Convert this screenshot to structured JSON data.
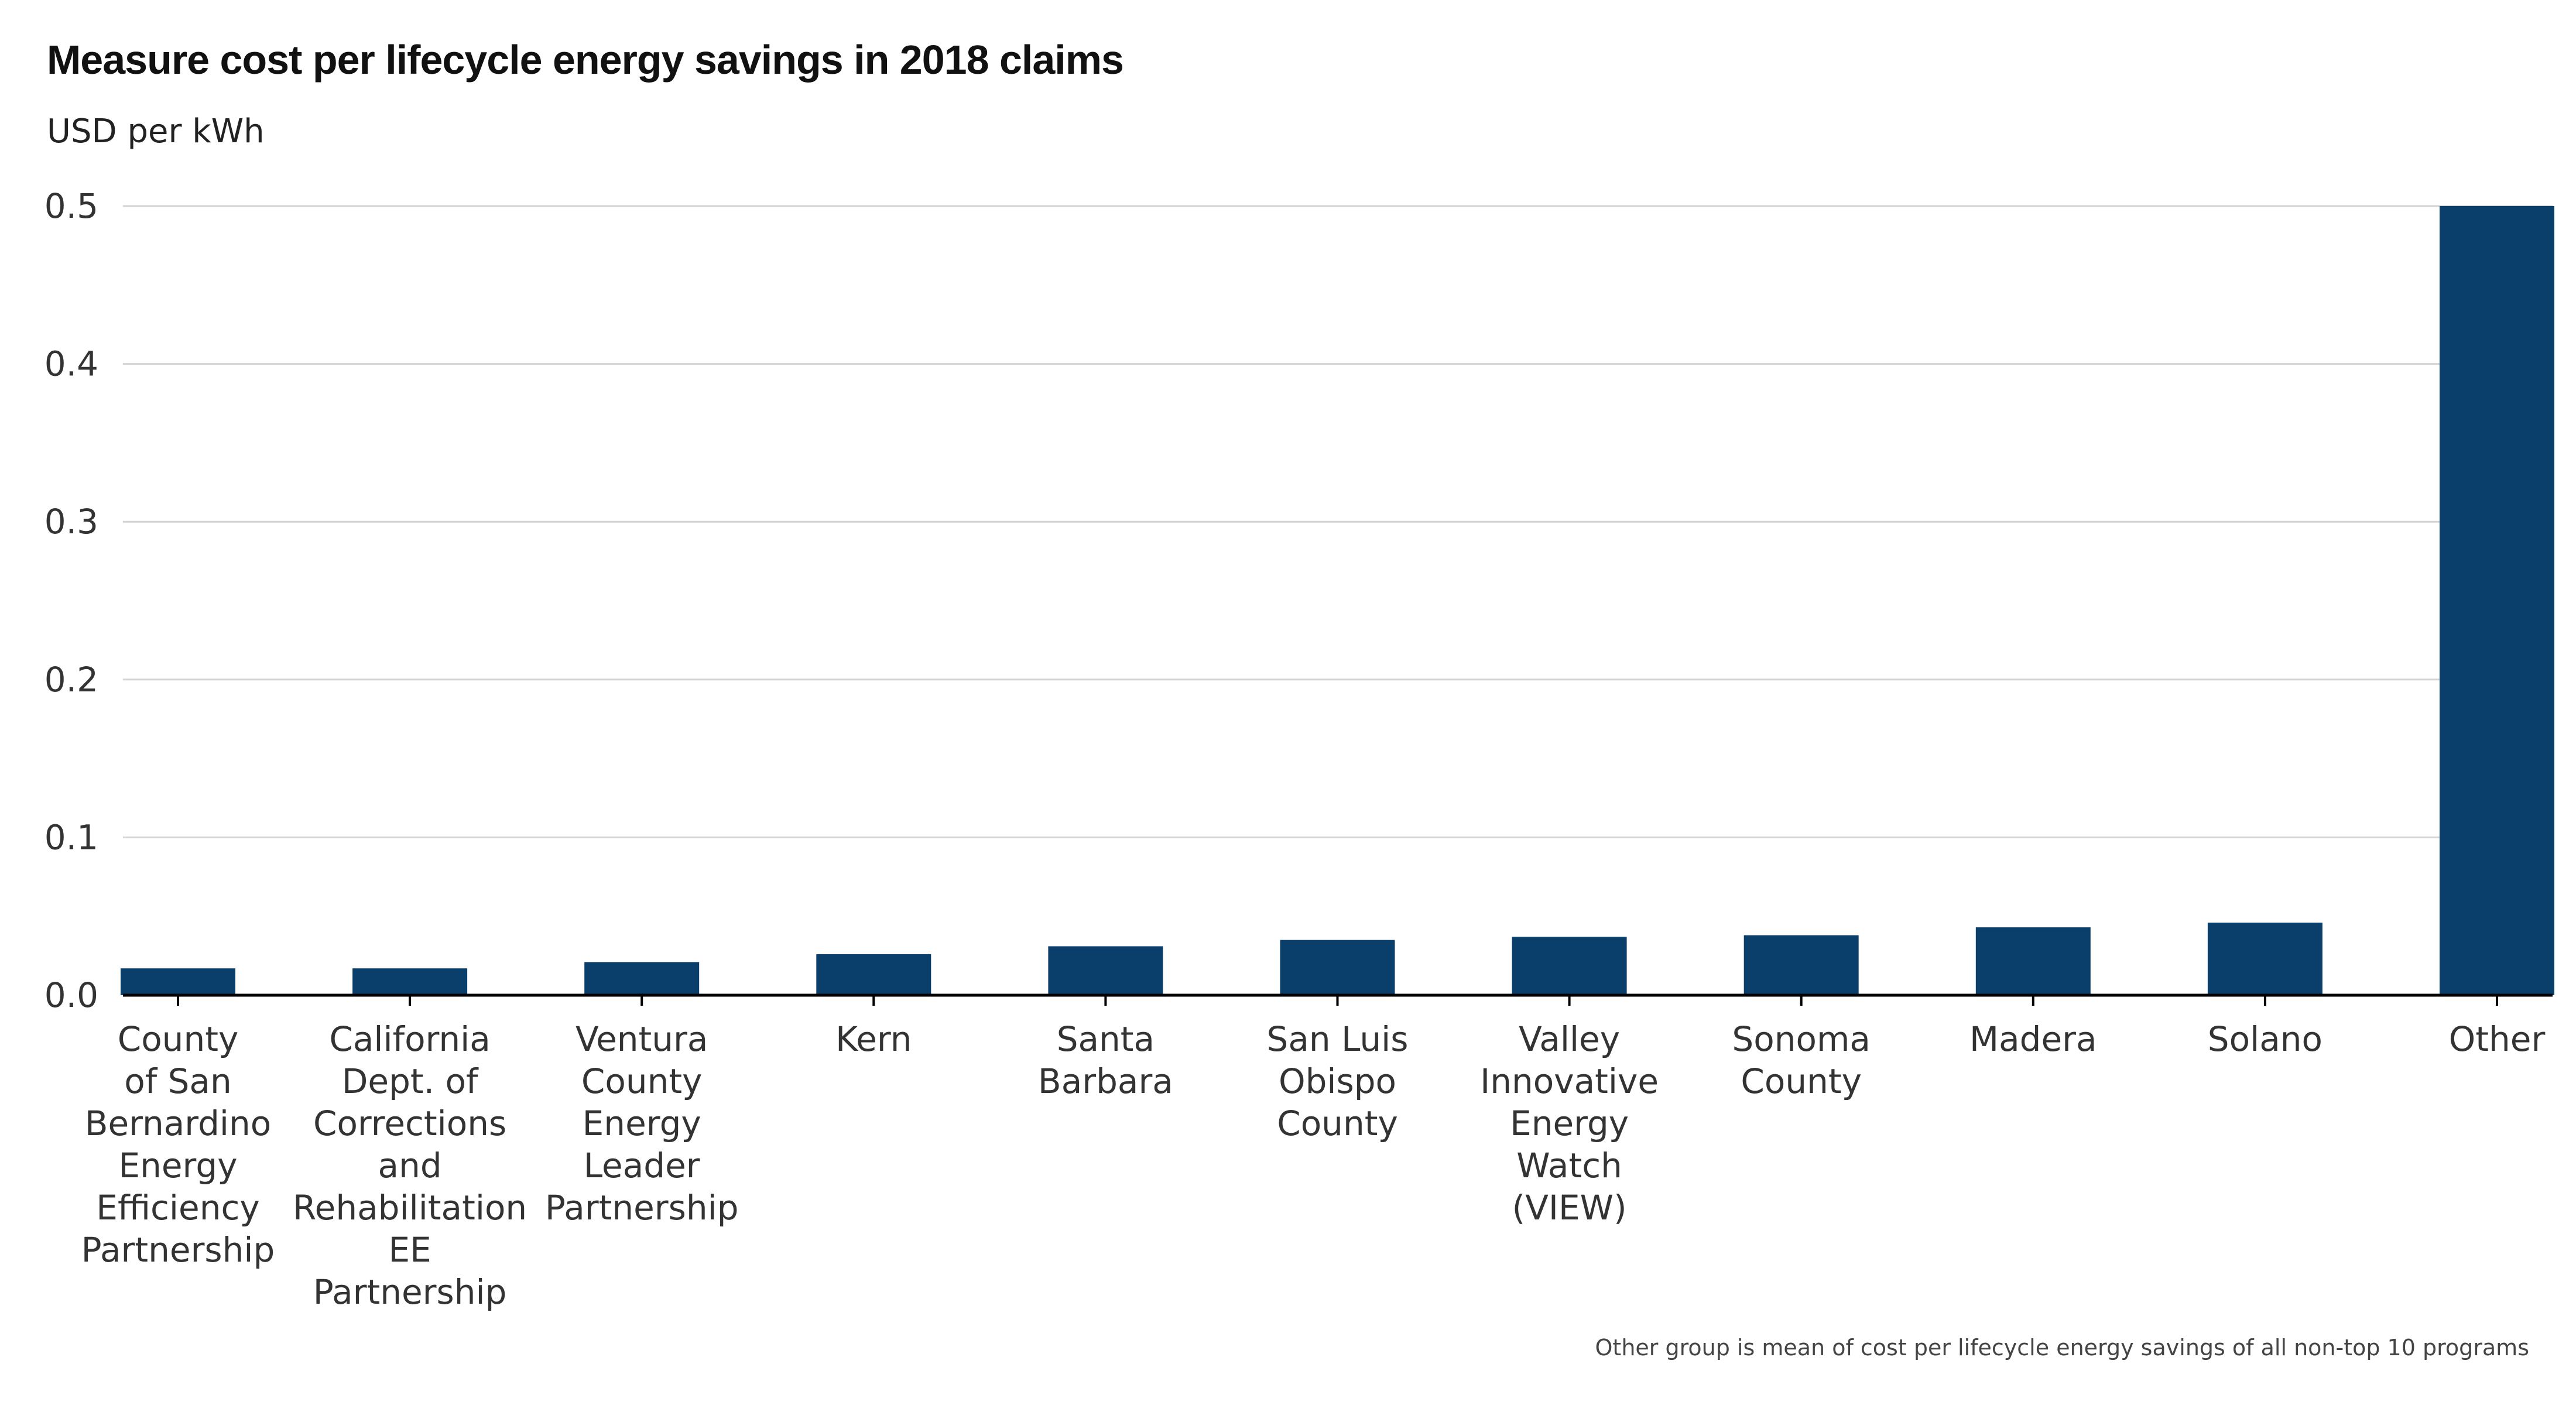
{
  "title": "Measure cost per lifecycle energy savings in 2018 claims",
  "subtitle": "USD per kWh",
  "footnote": "Other group is mean of cost per lifecycle energy savings of all non-top 10 programs",
  "colors": {
    "bar": "#0a3f6b",
    "grid": "#d3d3d3",
    "axis": "#000000"
  },
  "chart_data": {
    "type": "bar",
    "title": "Measure cost per lifecycle energy savings in 2018 claims",
    "ylabel": "USD per kWh",
    "xlabel": "",
    "ylim": [
      0,
      0.5
    ],
    "yticks": [
      "0.0",
      "0.1",
      "0.2",
      "0.3",
      "0.4",
      "0.5"
    ],
    "grid": true,
    "categories": [
      [
        "County",
        "of San",
        "Bernardino",
        "Energy",
        "Efficiency",
        "Partnership"
      ],
      [
        "California",
        "Dept. of",
        "Corrections",
        "and",
        "Rehabilitation",
        "EE",
        "Partnership"
      ],
      [
        "Ventura",
        "County",
        "Energy",
        "Leader",
        "Partnership"
      ],
      [
        "Kern"
      ],
      [
        "Santa",
        "Barbara"
      ],
      [
        "San Luis",
        "Obispo",
        "County"
      ],
      [
        "Valley",
        "Innovative",
        "Energy",
        "Watch",
        "(VIEW)"
      ],
      [
        "Sonoma",
        "County"
      ],
      [
        "Madera"
      ],
      [
        "Solano"
      ],
      [
        "Other"
      ]
    ],
    "values": [
      0.017,
      0.017,
      0.021,
      0.026,
      0.031,
      0.035,
      0.037,
      0.038,
      0.043,
      0.046,
      0.5
    ]
  }
}
